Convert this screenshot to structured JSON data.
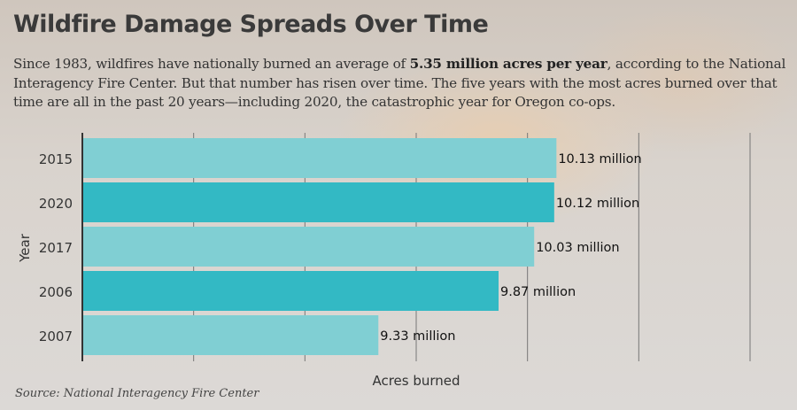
{
  "title": "Wildfire Damage Spreads Over Time",
  "subtitle": {
    "before": "Since 1983, wildfires have nationally burned an average of ",
    "bold": "5.35 million acres per year",
    "after": ", according to the National Interagency Fire Center. But that number has risen over time. The five years with the most acres burned over that time are all in the past 20 years—including 2020, the catastrophic year for Oregon co-ops."
  },
  "source": "Source: National Interagency Fire Center",
  "colors": {
    "light": "#80CFD3",
    "dark": "#33B9C4"
  },
  "chart_data": {
    "type": "bar",
    "orientation": "horizontal",
    "categories": [
      "2015",
      "2020",
      "2017",
      "2006",
      "2007"
    ],
    "values": [
      10.13,
      10.12,
      10.03,
      9.87,
      9.33
    ],
    "data_labels": [
      "10.13 million",
      "10.12 million",
      "10.03 million",
      "9.87 million",
      "9.33 million"
    ],
    "xlabel": "Acres burned",
    "ylabel": "Year",
    "xlim": [
      8,
      11
    ],
    "grid": true,
    "units": "million acres"
  }
}
